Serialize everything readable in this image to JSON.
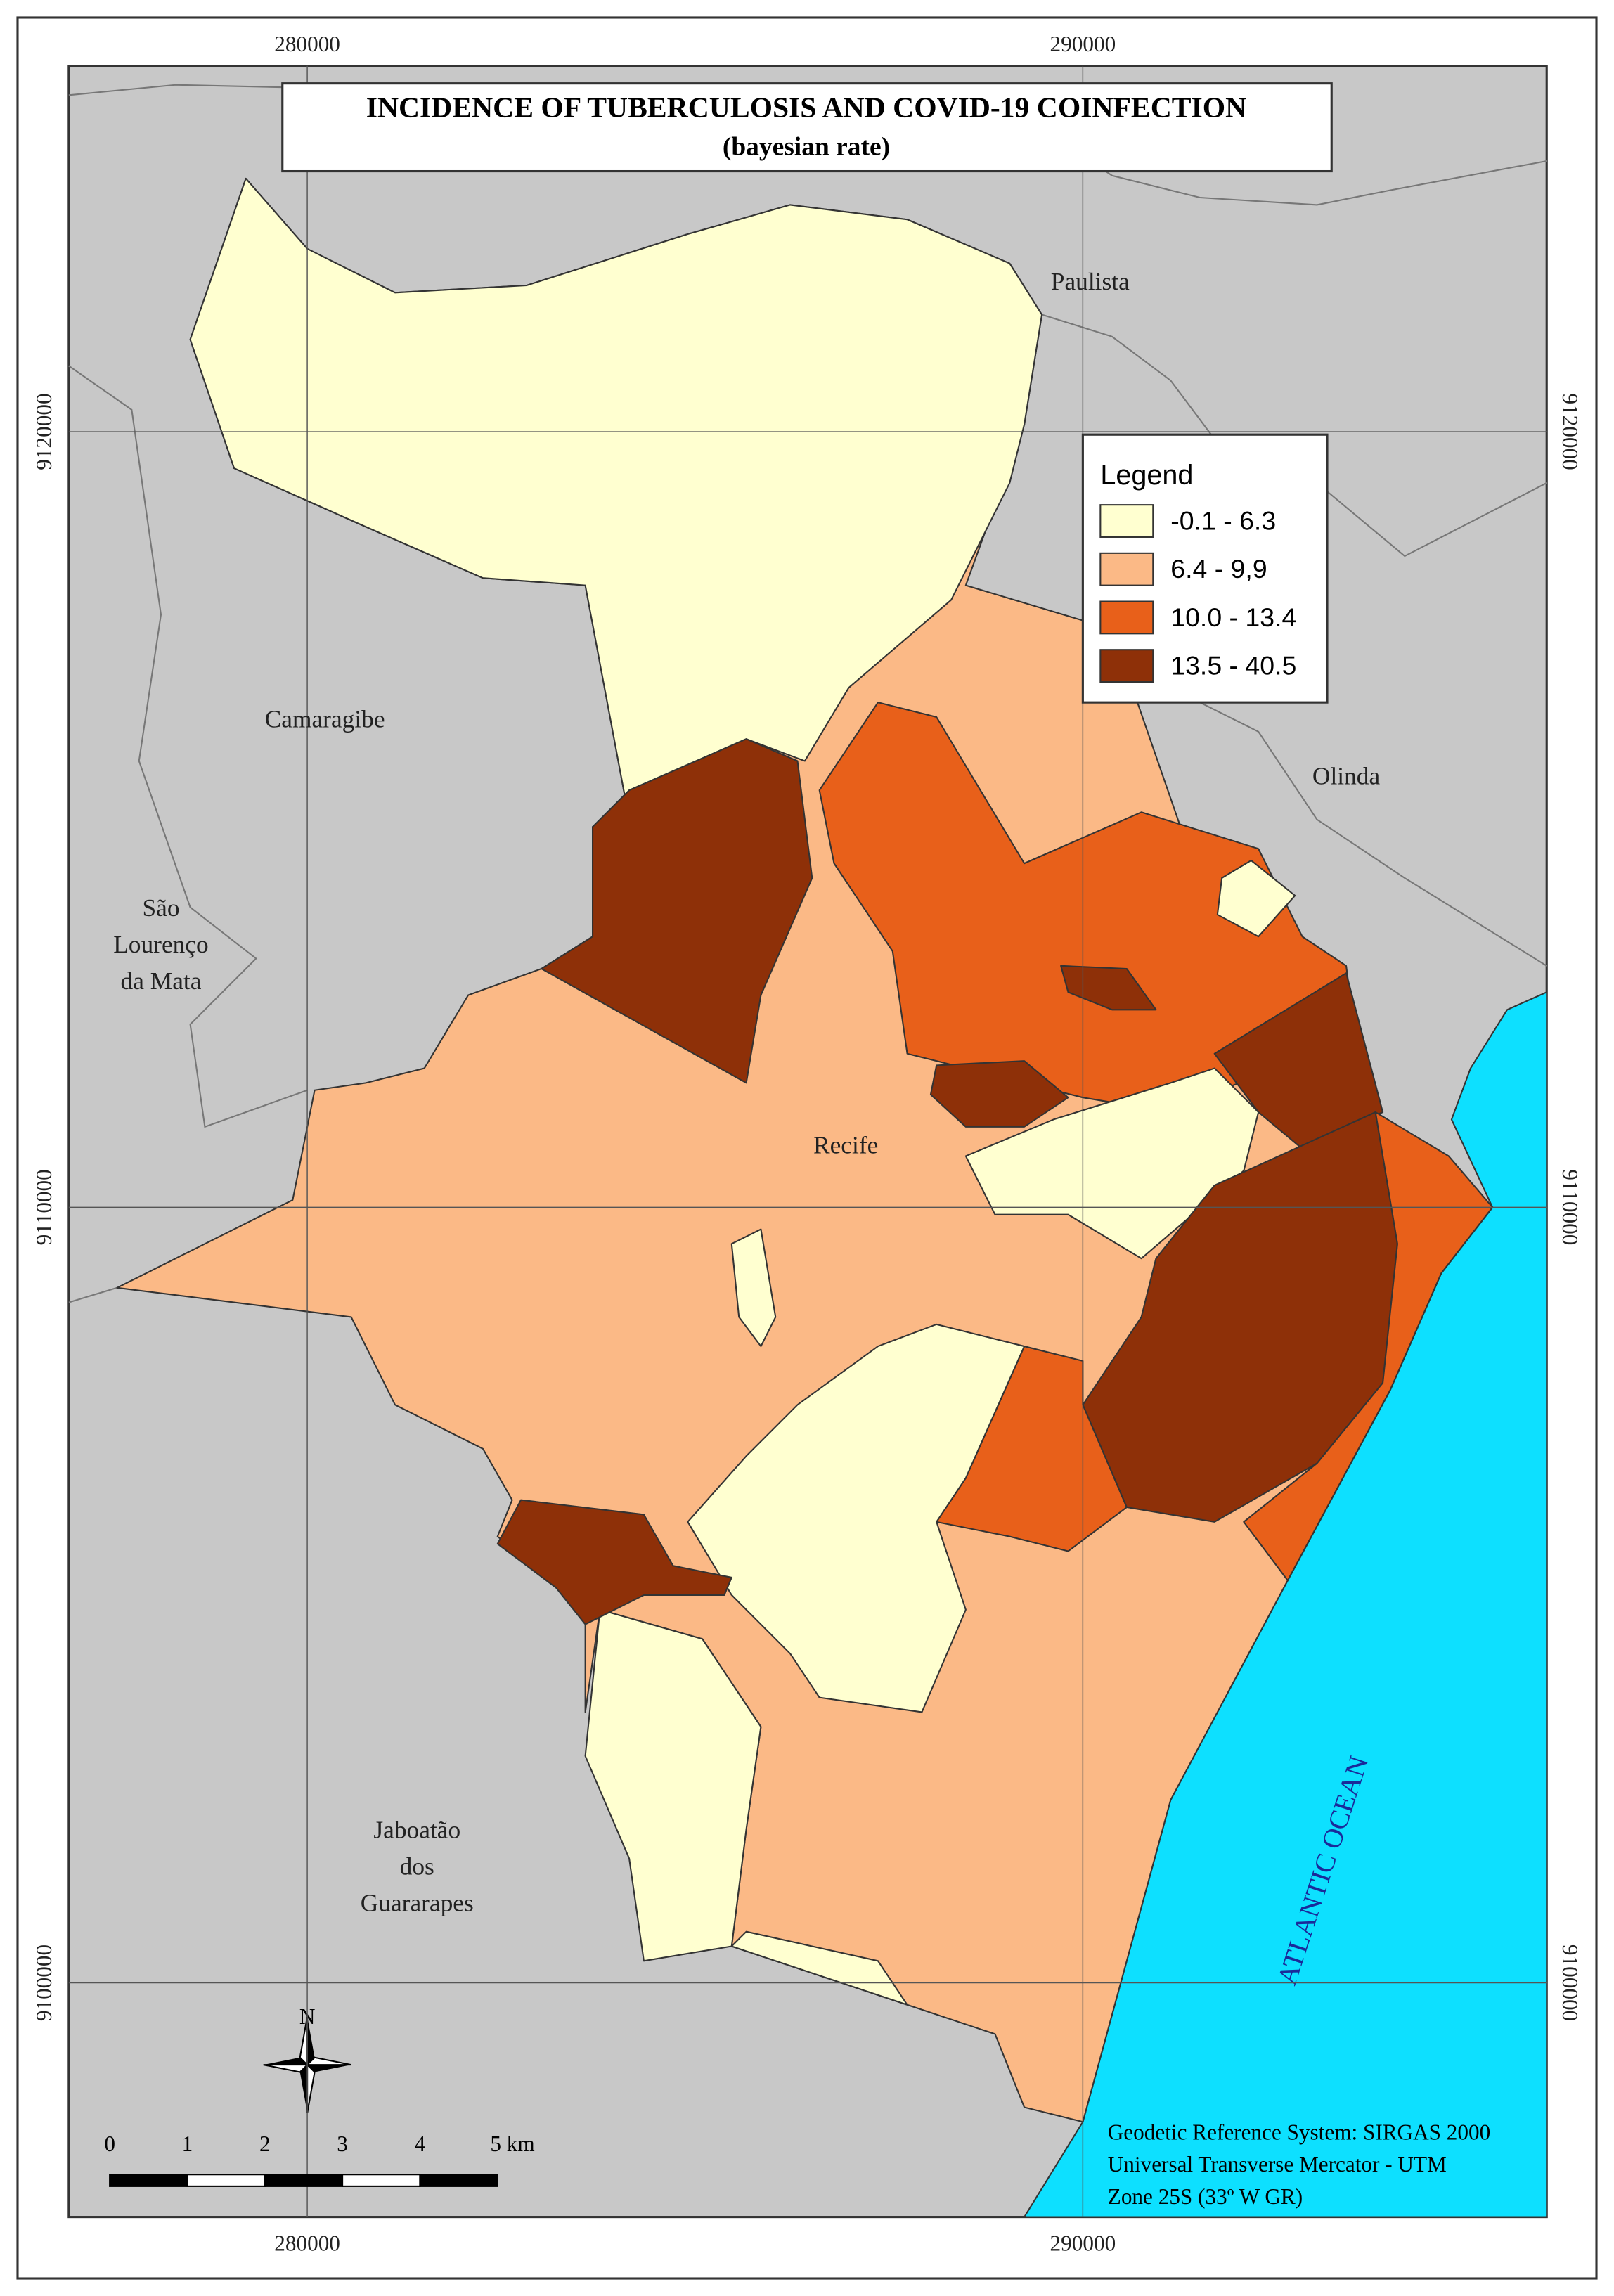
{
  "map": {
    "title": "INCIDENCE OF TUBERCULOSIS AND COVID-19 COINFECTION",
    "subtitle": "(bayesian rate)",
    "xlim": [
      276925,
      295981
    ],
    "ylim": [
      9096981,
      9124717
    ],
    "xticks": [
      280000,
      290000
    ],
    "yticks": [
      9120000,
      9110000,
      9100000
    ],
    "grid": true,
    "legend": {
      "title": "Legend",
      "classes": [
        {
          "label": "-0.1 - 6.3",
          "color": "#ffffd0"
        },
        {
          "label": "6.4 - 9,9",
          "color": "#fbb986"
        },
        {
          "label": "10.0 - 13.4",
          "color": "#e8601a"
        },
        {
          "label": "13.5 - 40.5",
          "color": "#8e3008"
        }
      ]
    },
    "places": [
      {
        "lines": [
          "Paulista"
        ]
      },
      {
        "lines": [
          "Camaragibe"
        ]
      },
      {
        "lines": [
          "Olinda"
        ]
      },
      {
        "lines": [
          "São",
          "Lourenço",
          "da Mata"
        ]
      },
      {
        "lines": [
          "Recife"
        ]
      },
      {
        "lines": [
          "Jaboatão",
          "dos",
          "Guararapes"
        ]
      }
    ],
    "ocean": "ATLANTIC OCEAN",
    "north": "N",
    "scale_bar": [
      "0",
      "1",
      "2",
      "3",
      "4",
      "5 km"
    ],
    "credits": [
      "Geodetic Reference System: SIRGAS 2000",
      "Universal Transverse Mercator - UTM",
      "Zone 25S (33º W GR)"
    ]
  }
}
